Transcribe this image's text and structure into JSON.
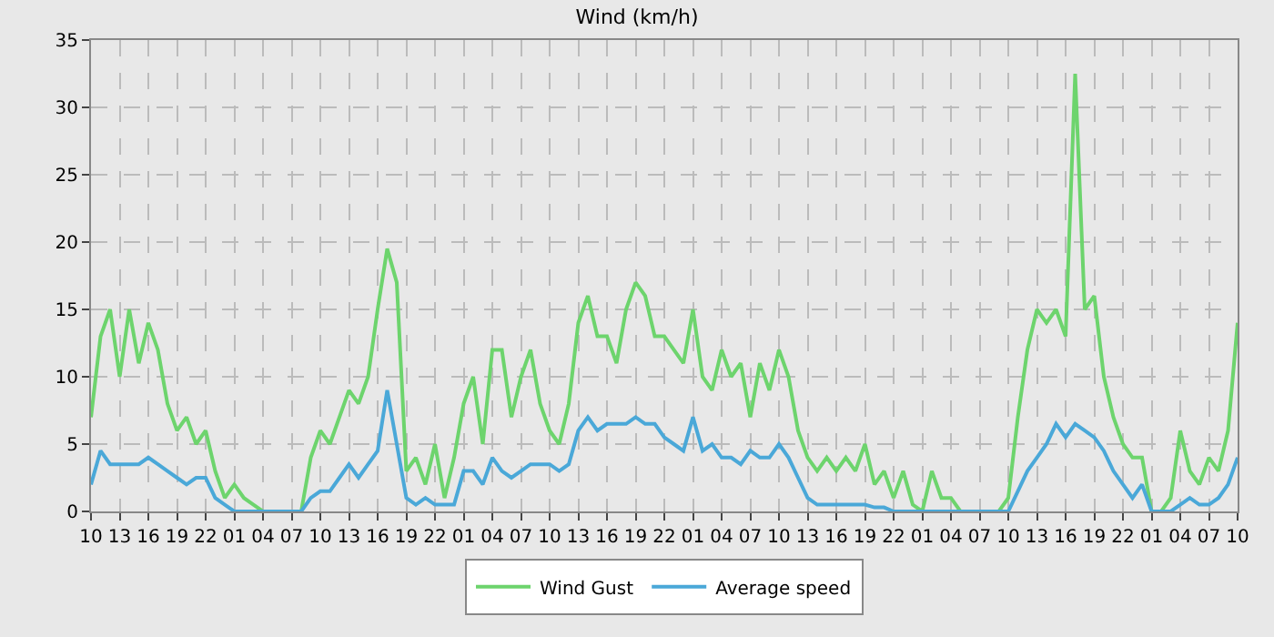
{
  "chart_data": {
    "type": "line",
    "title": "Wind (km/h)",
    "legend": "bottom",
    "grid": true,
    "line_style": "solid",
    "marker": "none",
    "categories": [
      "10",
      null,
      null,
      "13",
      null,
      null,
      "16",
      null,
      null,
      "19",
      null,
      null,
      "22",
      null,
      null,
      "01",
      null,
      null,
      "04",
      null,
      null,
      "07",
      null,
      null,
      "10",
      null,
      null,
      "13",
      null,
      null,
      "16",
      null,
      null,
      "19",
      null,
      null,
      "22",
      null,
      null,
      "01",
      null,
      null,
      "04",
      null,
      null,
      "07",
      null,
      null,
      "10",
      null,
      null,
      "13",
      null,
      null,
      "16",
      null,
      null,
      "19",
      null,
      null,
      "22",
      null,
      null,
      "01",
      null,
      null,
      "04",
      null,
      null,
      "07",
      null,
      null,
      "10",
      null,
      null,
      "13",
      null,
      null,
      "16",
      null,
      null,
      "19",
      null,
      null,
      "22",
      null,
      null,
      "01",
      null,
      null,
      "04",
      null,
      null,
      "07",
      null,
      null,
      "10",
      null,
      null,
      "13",
      null,
      null,
      "16",
      null,
      null,
      "19",
      null,
      null,
      "22",
      null,
      null,
      "01",
      null,
      null,
      "04",
      null,
      null,
      "07",
      null,
      null,
      "10"
    ],
    "series": [
      {
        "name": "Wind Gust",
        "color": "#6dd46d",
        "values": [
          7,
          13,
          15,
          10,
          15,
          11,
          14,
          12,
          8,
          6,
          7,
          5,
          6,
          3,
          1,
          2,
          1,
          0.5,
          0,
          0,
          0,
          0,
          0,
          4,
          6,
          5,
          7,
          9,
          8,
          10,
          15,
          19.5,
          17,
          3,
          4,
          2,
          5,
          1,
          4,
          8,
          10,
          5,
          12,
          12,
          7,
          10,
          12,
          8,
          6,
          5,
          8,
          14,
          16,
          13,
          13,
          11,
          15,
          17,
          16,
          13,
          13,
          12,
          11,
          15,
          10,
          9,
          12,
          10,
          11,
          7,
          11,
          9,
          12,
          10,
          6,
          4,
          3,
          4,
          3,
          4,
          3,
          5,
          2,
          3,
          1,
          3,
          0.5,
          0,
          3,
          1,
          1,
          0,
          0,
          0,
          0,
          0,
          1,
          7,
          12,
          15,
          14,
          15,
          13,
          32.5,
          15,
          16,
          10,
          7,
          5,
          4,
          4,
          0,
          0,
          1,
          6,
          3,
          2,
          4,
          3,
          6,
          14
        ]
      },
      {
        "name": "Average speed",
        "color": "#4aa8d8",
        "values": [
          2,
          4.5,
          3.5,
          3.5,
          3.5,
          3.5,
          4,
          3.5,
          3,
          2.5,
          2,
          2.5,
          2.5,
          1,
          0.5,
          0,
          0,
          0,
          0,
          0,
          0,
          0,
          0,
          1,
          1.5,
          1.5,
          2.5,
          3.5,
          2.5,
          3.5,
          4.5,
          9,
          5,
          1,
          0.5,
          1,
          0.5,
          0.5,
          0.5,
          3,
          3,
          2,
          4,
          3,
          2.5,
          3,
          3.5,
          3.5,
          3.5,
          3,
          3.5,
          6,
          7,
          6,
          6.5,
          6.5,
          6.5,
          7,
          6.5,
          6.5,
          5.5,
          5,
          4.5,
          7,
          4.5,
          5,
          4,
          4,
          3.5,
          4.5,
          4,
          4,
          5,
          4,
          2.5,
          1,
          0.5,
          0.5,
          0.5,
          0.5,
          0.5,
          0.5,
          0.3,
          0.3,
          0,
          0,
          0,
          0,
          0,
          0,
          0,
          0,
          0,
          0,
          0,
          0,
          0,
          1.5,
          3,
          4,
          5,
          6.5,
          5.5,
          6.5,
          6,
          5.5,
          4.5,
          3,
          2,
          1,
          2,
          0,
          0,
          0,
          0.5,
          1,
          0.5,
          0.5,
          1,
          2,
          4
        ]
      }
    ],
    "ylim": [
      0,
      35
    ],
    "yticks": [
      0,
      5,
      10,
      15,
      20,
      25,
      30,
      35
    ]
  }
}
